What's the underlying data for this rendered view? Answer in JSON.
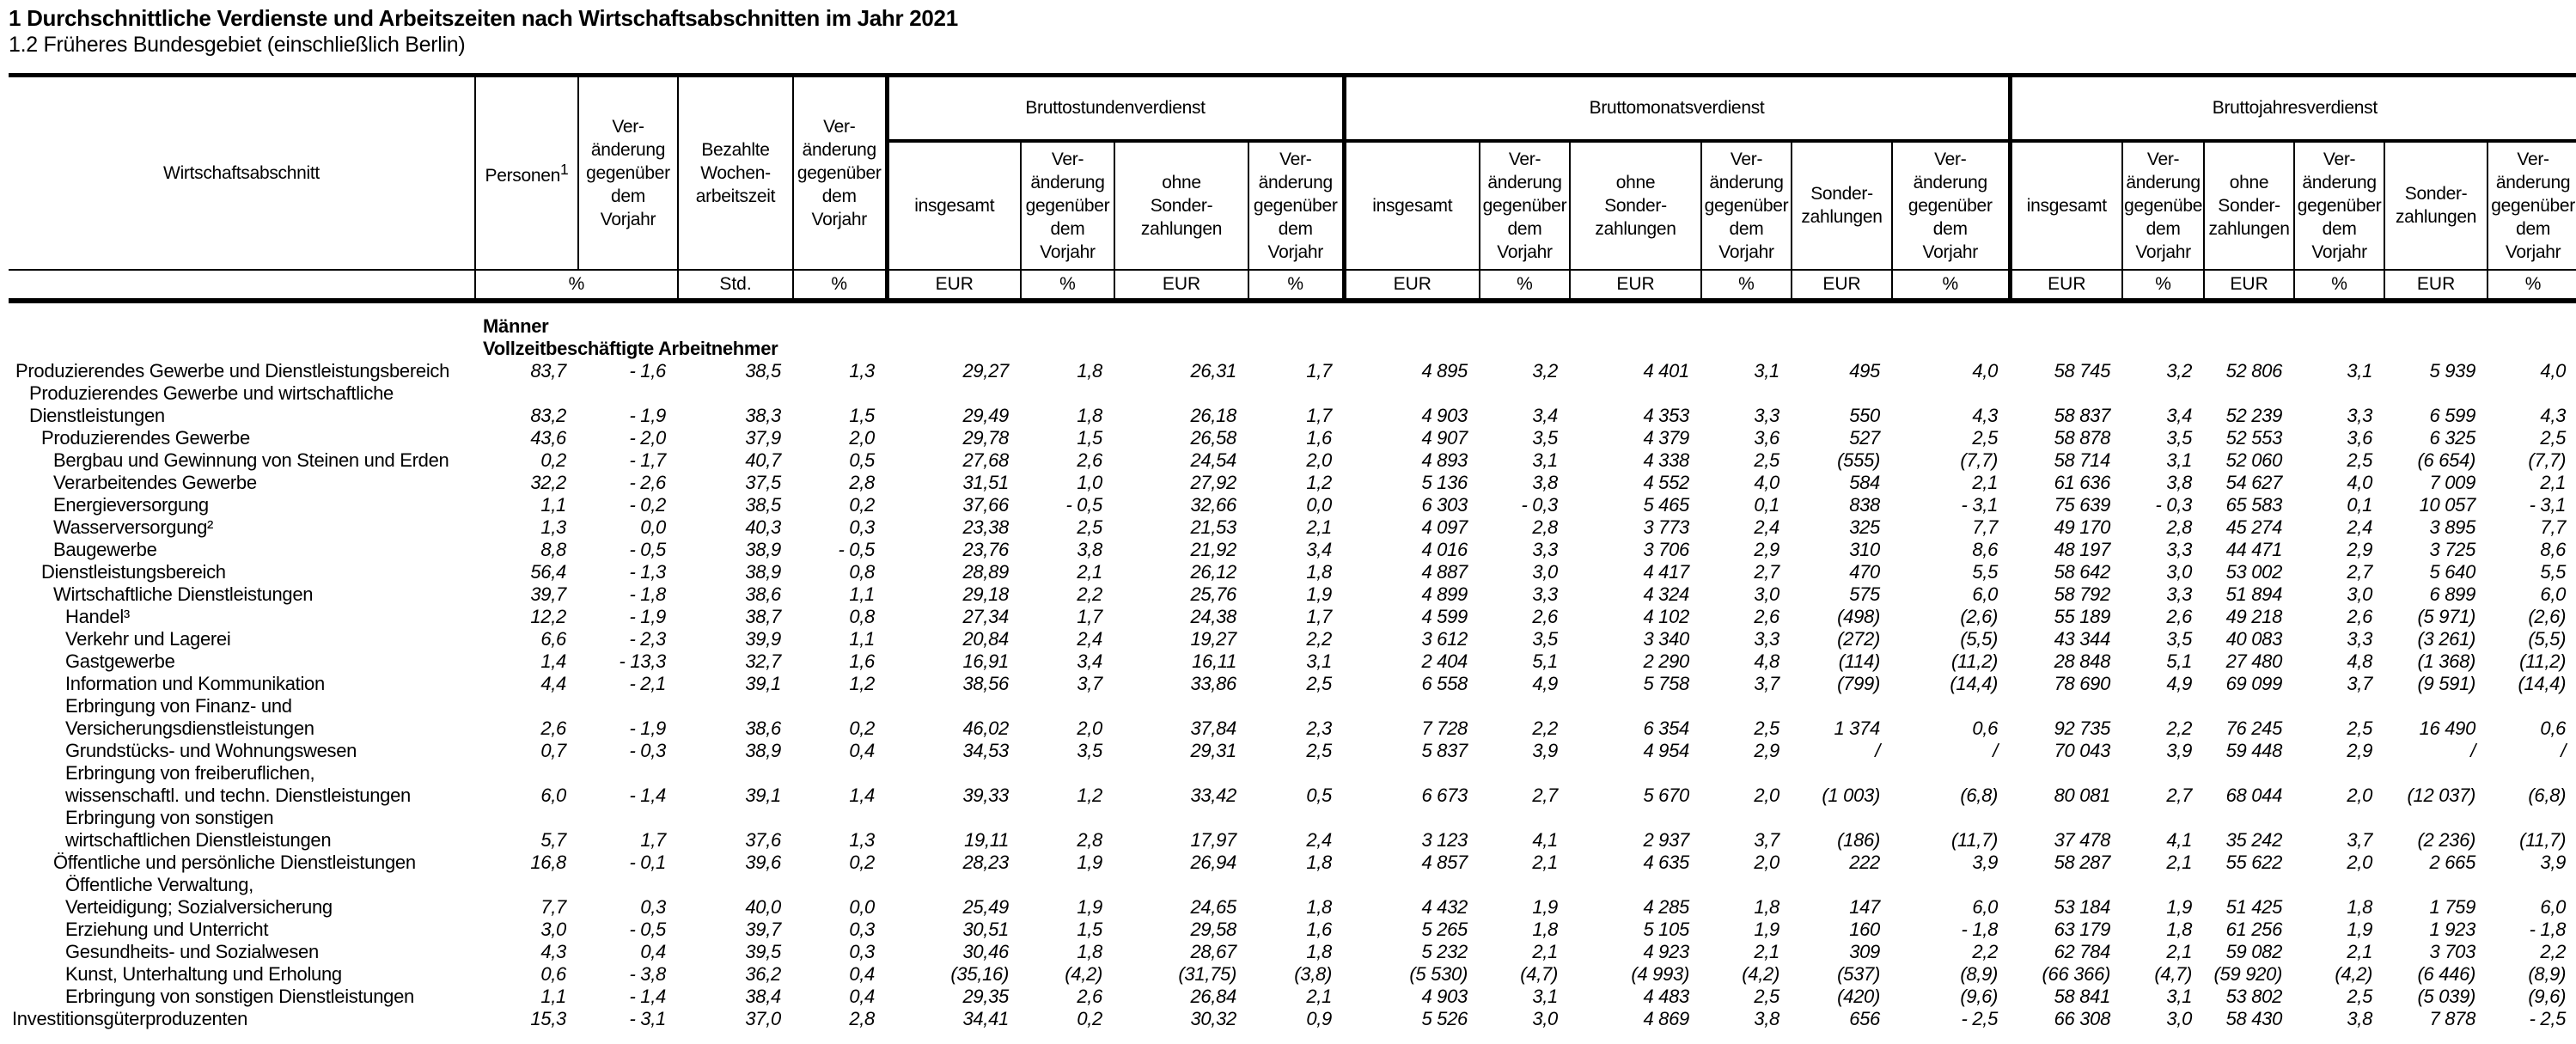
{
  "title": "1 Durchschnittliche Verdienste und Arbeitszeiten nach Wirtschaftsabschnitten im Jahr 2021",
  "subtitle": "1.2 Früheres Bundesgebiet (einschließlich Berlin)",
  "table": {
    "row_header_label": "Wirtschaftsabschnitt",
    "personen_label": "Personen",
    "personen_sup": "1",
    "change_label": "Ver-\nänderung\ngegenüber\ndem\nVorjahr",
    "hours_label": "Bezahlte\nWochen-\narbeitszeit",
    "insgesamt_label": "insgesamt",
    "ohne_label": "ohne\nSonder-\nzahlungen",
    "sonder_label": "Sonder-\nzahlungen",
    "groups": [
      {
        "label": "Bruttostundenverdienst"
      },
      {
        "label": "Bruttomonatsverdienst"
      },
      {
        "label": "Bruttojahresverdienst"
      }
    ],
    "units": [
      "%",
      "Std.",
      "%",
      "EUR",
      "%",
      "EUR",
      "%",
      "EUR",
      "%",
      "EUR",
      "%",
      "EUR",
      "%",
      "EUR",
      "%",
      "EUR",
      "%",
      "EUR",
      "%"
    ],
    "section_header": [
      "Männer",
      "Vollzeitbeschäftigte Arbeitnehmer"
    ],
    "rows": [
      {
        "label": "Produzierendes Gewerbe und Dienstleistungsbereich",
        "indent": 8,
        "values": [
          "83,7",
          "- 1,6",
          "38,5",
          "1,3",
          "29,27",
          "1,8",
          "26,31",
          "1,7",
          "4 895",
          "3,2",
          "4 401",
          "3,1",
          "495",
          "4,0",
          "58 745",
          "3,2",
          "52 806",
          "3,1",
          "5 939",
          "4,0"
        ]
      },
      {
        "label": "Produzierendes Gewerbe und wirtschaftliche\nDienstleistungen",
        "indent": 24,
        "values": [
          "83,2",
          "- 1,9",
          "38,3",
          "1,5",
          "29,49",
          "1,8",
          "26,18",
          "1,7",
          "4 903",
          "3,4",
          "4 353",
          "3,3",
          "550",
          "4,3",
          "58 837",
          "3,4",
          "52 239",
          "3,3",
          "6 599",
          "4,3"
        ]
      },
      {
        "label": "Produzierendes Gewerbe",
        "indent": 38,
        "values": [
          "43,6",
          "- 2,0",
          "37,9",
          "2,0",
          "29,78",
          "1,5",
          "26,58",
          "1,6",
          "4 907",
          "3,5",
          "4 379",
          "3,6",
          "527",
          "2,5",
          "58 878",
          "3,5",
          "52 553",
          "3,6",
          "6 325",
          "2,5"
        ]
      },
      {
        "label": "Bergbau und Gewinnung von Steinen und Erden",
        "indent": 52,
        "values": [
          "0,2",
          "- 1,7",
          "40,7",
          "0,5",
          "27,68",
          "2,6",
          "24,54",
          "2,0",
          "4 893",
          "3,1",
          "4 338",
          "2,5",
          "(555)",
          "(7,7)",
          "58 714",
          "3,1",
          "52 060",
          "2,5",
          "(6 654)",
          "(7,7)"
        ]
      },
      {
        "label": "Verarbeitendes Gewerbe",
        "indent": 52,
        "values": [
          "32,2",
          "- 2,6",
          "37,5",
          "2,8",
          "31,51",
          "1,0",
          "27,92",
          "1,2",
          "5 136",
          "3,8",
          "4 552",
          "4,0",
          "584",
          "2,1",
          "61 636",
          "3,8",
          "54 627",
          "4,0",
          "7 009",
          "2,1"
        ]
      },
      {
        "label": "Energieversorgung",
        "indent": 52,
        "values": [
          "1,1",
          "- 0,2",
          "38,5",
          "0,2",
          "37,66",
          "- 0,5",
          "32,66",
          "0,0",
          "6 303",
          "- 0,3",
          "5 465",
          "0,1",
          "838",
          "- 3,1",
          "75 639",
          "- 0,3",
          "65 583",
          "0,1",
          "10 057",
          "- 3,1"
        ]
      },
      {
        "label": "Wasserversorgung²",
        "indent": 52,
        "values": [
          "1,3",
          "0,0",
          "40,3",
          "0,3",
          "23,38",
          "2,5",
          "21,53",
          "2,1",
          "4 097",
          "2,8",
          "3 773",
          "2,4",
          "325",
          "7,7",
          "49 170",
          "2,8",
          "45 274",
          "2,4",
          "3 895",
          "7,7"
        ]
      },
      {
        "label": "Baugewerbe",
        "indent": 52,
        "values": [
          "8,8",
          "- 0,5",
          "38,9",
          "- 0,5",
          "23,76",
          "3,8",
          "21,92",
          "3,4",
          "4 016",
          "3,3",
          "3 706",
          "2,9",
          "310",
          "8,6",
          "48 197",
          "3,3",
          "44 471",
          "2,9",
          "3 725",
          "8,6"
        ]
      },
      {
        "label": "Dienstleistungsbereich",
        "indent": 38,
        "values": [
          "56,4",
          "- 1,3",
          "38,9",
          "0,8",
          "28,89",
          "2,1",
          "26,12",
          "1,8",
          "4 887",
          "3,0",
          "4 417",
          "2,7",
          "470",
          "5,5",
          "58 642",
          "3,0",
          "53 002",
          "2,7",
          "5 640",
          "5,5"
        ]
      },
      {
        "label": "Wirtschaftliche Dienstleistungen",
        "indent": 52,
        "values": [
          "39,7",
          "- 1,8",
          "38,6",
          "1,1",
          "29,18",
          "2,2",
          "25,76",
          "1,9",
          "4 899",
          "3,3",
          "4 324",
          "3,0",
          "575",
          "6,0",
          "58 792",
          "3,3",
          "51 894",
          "3,0",
          "6 899",
          "6,0"
        ]
      },
      {
        "label": "Handel³",
        "indent": 66,
        "values": [
          "12,2",
          "- 1,9",
          "38,7",
          "0,8",
          "27,34",
          "1,7",
          "24,38",
          "1,7",
          "4 599",
          "2,6",
          "4 102",
          "2,6",
          "(498)",
          "(2,6)",
          "55 189",
          "2,6",
          "49 218",
          "2,6",
          "(5 971)",
          "(2,6)"
        ]
      },
      {
        "label": "Verkehr und Lagerei",
        "indent": 66,
        "values": [
          "6,6",
          "- 2,3",
          "39,9",
          "1,1",
          "20,84",
          "2,4",
          "19,27",
          "2,2",
          "3 612",
          "3,5",
          "3 340",
          "3,3",
          "(272)",
          "(5,5)",
          "43 344",
          "3,5",
          "40 083",
          "3,3",
          "(3 261)",
          "(5,5)"
        ]
      },
      {
        "label": "Gastgewerbe",
        "indent": 66,
        "values": [
          "1,4",
          "- 13,3",
          "32,7",
          "1,6",
          "16,91",
          "3,4",
          "16,11",
          "3,1",
          "2 404",
          "5,1",
          "2 290",
          "4,8",
          "(114)",
          "(11,2)",
          "28 848",
          "5,1",
          "27 480",
          "4,8",
          "(1 368)",
          "(11,2)"
        ]
      },
      {
        "label": "Information und Kommunikation",
        "indent": 66,
        "values": [
          "4,4",
          "- 2,1",
          "39,1",
          "1,2",
          "38,56",
          "3,7",
          "33,86",
          "2,5",
          "6 558",
          "4,9",
          "5 758",
          "3,7",
          "(799)",
          "(14,4)",
          "78 690",
          "4,9",
          "69 099",
          "3,7",
          "(9 591)",
          "(14,4)"
        ]
      },
      {
        "label": "Erbringung von Finanz- und\nVersicherungsdienstleistungen",
        "indent": 66,
        "values": [
          "2,6",
          "- 1,9",
          "38,6",
          "0,2",
          "46,02",
          "2,0",
          "37,84",
          "2,3",
          "7 728",
          "2,2",
          "6 354",
          "2,5",
          "1 374",
          "0,6",
          "92 735",
          "2,2",
          "76 245",
          "2,5",
          "16 490",
          "0,6"
        ]
      },
      {
        "label": "Grundstücks- und Wohnungswesen",
        "indent": 66,
        "values": [
          "0,7",
          "- 0,3",
          "38,9",
          "0,4",
          "34,53",
          "3,5",
          "29,31",
          "2,5",
          "5 837",
          "3,9",
          "4 954",
          "2,9",
          "/",
          "/",
          "70 043",
          "3,9",
          "59 448",
          "2,9",
          "/",
          "/"
        ]
      },
      {
        "label": "Erbringung von freiberuflichen,\nwissenschaftl. und techn. Dienstleistungen",
        "indent": 66,
        "values": [
          "6,0",
          "- 1,4",
          "39,1",
          "1,4",
          "39,33",
          "1,2",
          "33,42",
          "0,5",
          "6 673",
          "2,7",
          "5 670",
          "2,0",
          "(1 003)",
          "(6,8)",
          "80 081",
          "2,7",
          "68 044",
          "2,0",
          "(12 037)",
          "(6,8)"
        ]
      },
      {
        "label": "Erbringung von sonstigen\nwirtschaftlichen Dienstleistungen",
        "indent": 66,
        "values": [
          "5,7",
          "1,7",
          "37,6",
          "1,3",
          "19,11",
          "2,8",
          "17,97",
          "2,4",
          "3 123",
          "4,1",
          "2 937",
          "3,7",
          "(186)",
          "(11,7)",
          "37 478",
          "4,1",
          "35 242",
          "3,7",
          "(2 236)",
          "(11,7)"
        ]
      },
      {
        "label": "Öffentliche und persönliche Dienstleistungen",
        "indent": 52,
        "values": [
          "16,8",
          "- 0,1",
          "39,6",
          "0,2",
          "28,23",
          "1,9",
          "26,94",
          "1,8",
          "4 857",
          "2,1",
          "4 635",
          "2,0",
          "222",
          "3,9",
          "58 287",
          "2,1",
          "55 622",
          "2,0",
          "2 665",
          "3,9"
        ]
      },
      {
        "label": "Öffentliche Verwaltung,\nVerteidigung; Sozialversicherung",
        "indent": 66,
        "values": [
          "7,7",
          "0,3",
          "40,0",
          "0,0",
          "25,49",
          "1,9",
          "24,65",
          "1,8",
          "4 432",
          "1,9",
          "4 285",
          "1,8",
          "147",
          "6,0",
          "53 184",
          "1,9",
          "51 425",
          "1,8",
          "1 759",
          "6,0"
        ]
      },
      {
        "label": "Erziehung und Unterricht",
        "indent": 66,
        "values": [
          "3,0",
          "- 0,5",
          "39,7",
          "0,3",
          "30,51",
          "1,5",
          "29,58",
          "1,6",
          "5 265",
          "1,8",
          "5 105",
          "1,9",
          "160",
          "- 1,8",
          "63 179",
          "1,8",
          "61 256",
          "1,9",
          "1 923",
          "- 1,8"
        ]
      },
      {
        "label": "Gesundheits- und Sozialwesen",
        "indent": 66,
        "values": [
          "4,3",
          "0,4",
          "39,5",
          "0,3",
          "30,46",
          "1,8",
          "28,67",
          "1,8",
          "5 232",
          "2,1",
          "4 923",
          "2,1",
          "309",
          "2,2",
          "62 784",
          "2,1",
          "59 082",
          "2,1",
          "3 703",
          "2,2"
        ]
      },
      {
        "label": "Kunst, Unterhaltung und Erholung",
        "indent": 66,
        "values": [
          "0,6",
          "- 3,8",
          "36,2",
          "0,4",
          "(35,16)",
          "(4,2)",
          "(31,75)",
          "(3,8)",
          "(5 530)",
          "(4,7)",
          "(4 993)",
          "(4,2)",
          "(537)",
          "(8,9)",
          "(66 366)",
          "(4,7)",
          "(59 920)",
          "(4,2)",
          "(6 446)",
          "(8,9)"
        ]
      },
      {
        "label": "Erbringung von sonstigen Dienstleistungen",
        "indent": 66,
        "values": [
          "1,1",
          "- 1,4",
          "38,4",
          "0,4",
          "29,35",
          "2,6",
          "26,84",
          "2,1",
          "4 903",
          "3,1",
          "4 483",
          "2,5",
          "(420)",
          "(9,6)",
          "58 841",
          "3,1",
          "53 802",
          "2,5",
          "(5 039)",
          "(9,6)"
        ]
      },
      {
        "label": "Investitionsgüterproduzenten",
        "indent": 4,
        "values": [
          "15,3",
          "- 3,1",
          "37,0",
          "2,8",
          "34,41",
          "0,2",
          "30,32",
          "0,9",
          "5 526",
          "3,0",
          "4 869",
          "3,8",
          "656",
          "- 2,5",
          "66 308",
          "3,0",
          "58 430",
          "3,8",
          "7 878",
          "- 2,5"
        ]
      }
    ]
  }
}
